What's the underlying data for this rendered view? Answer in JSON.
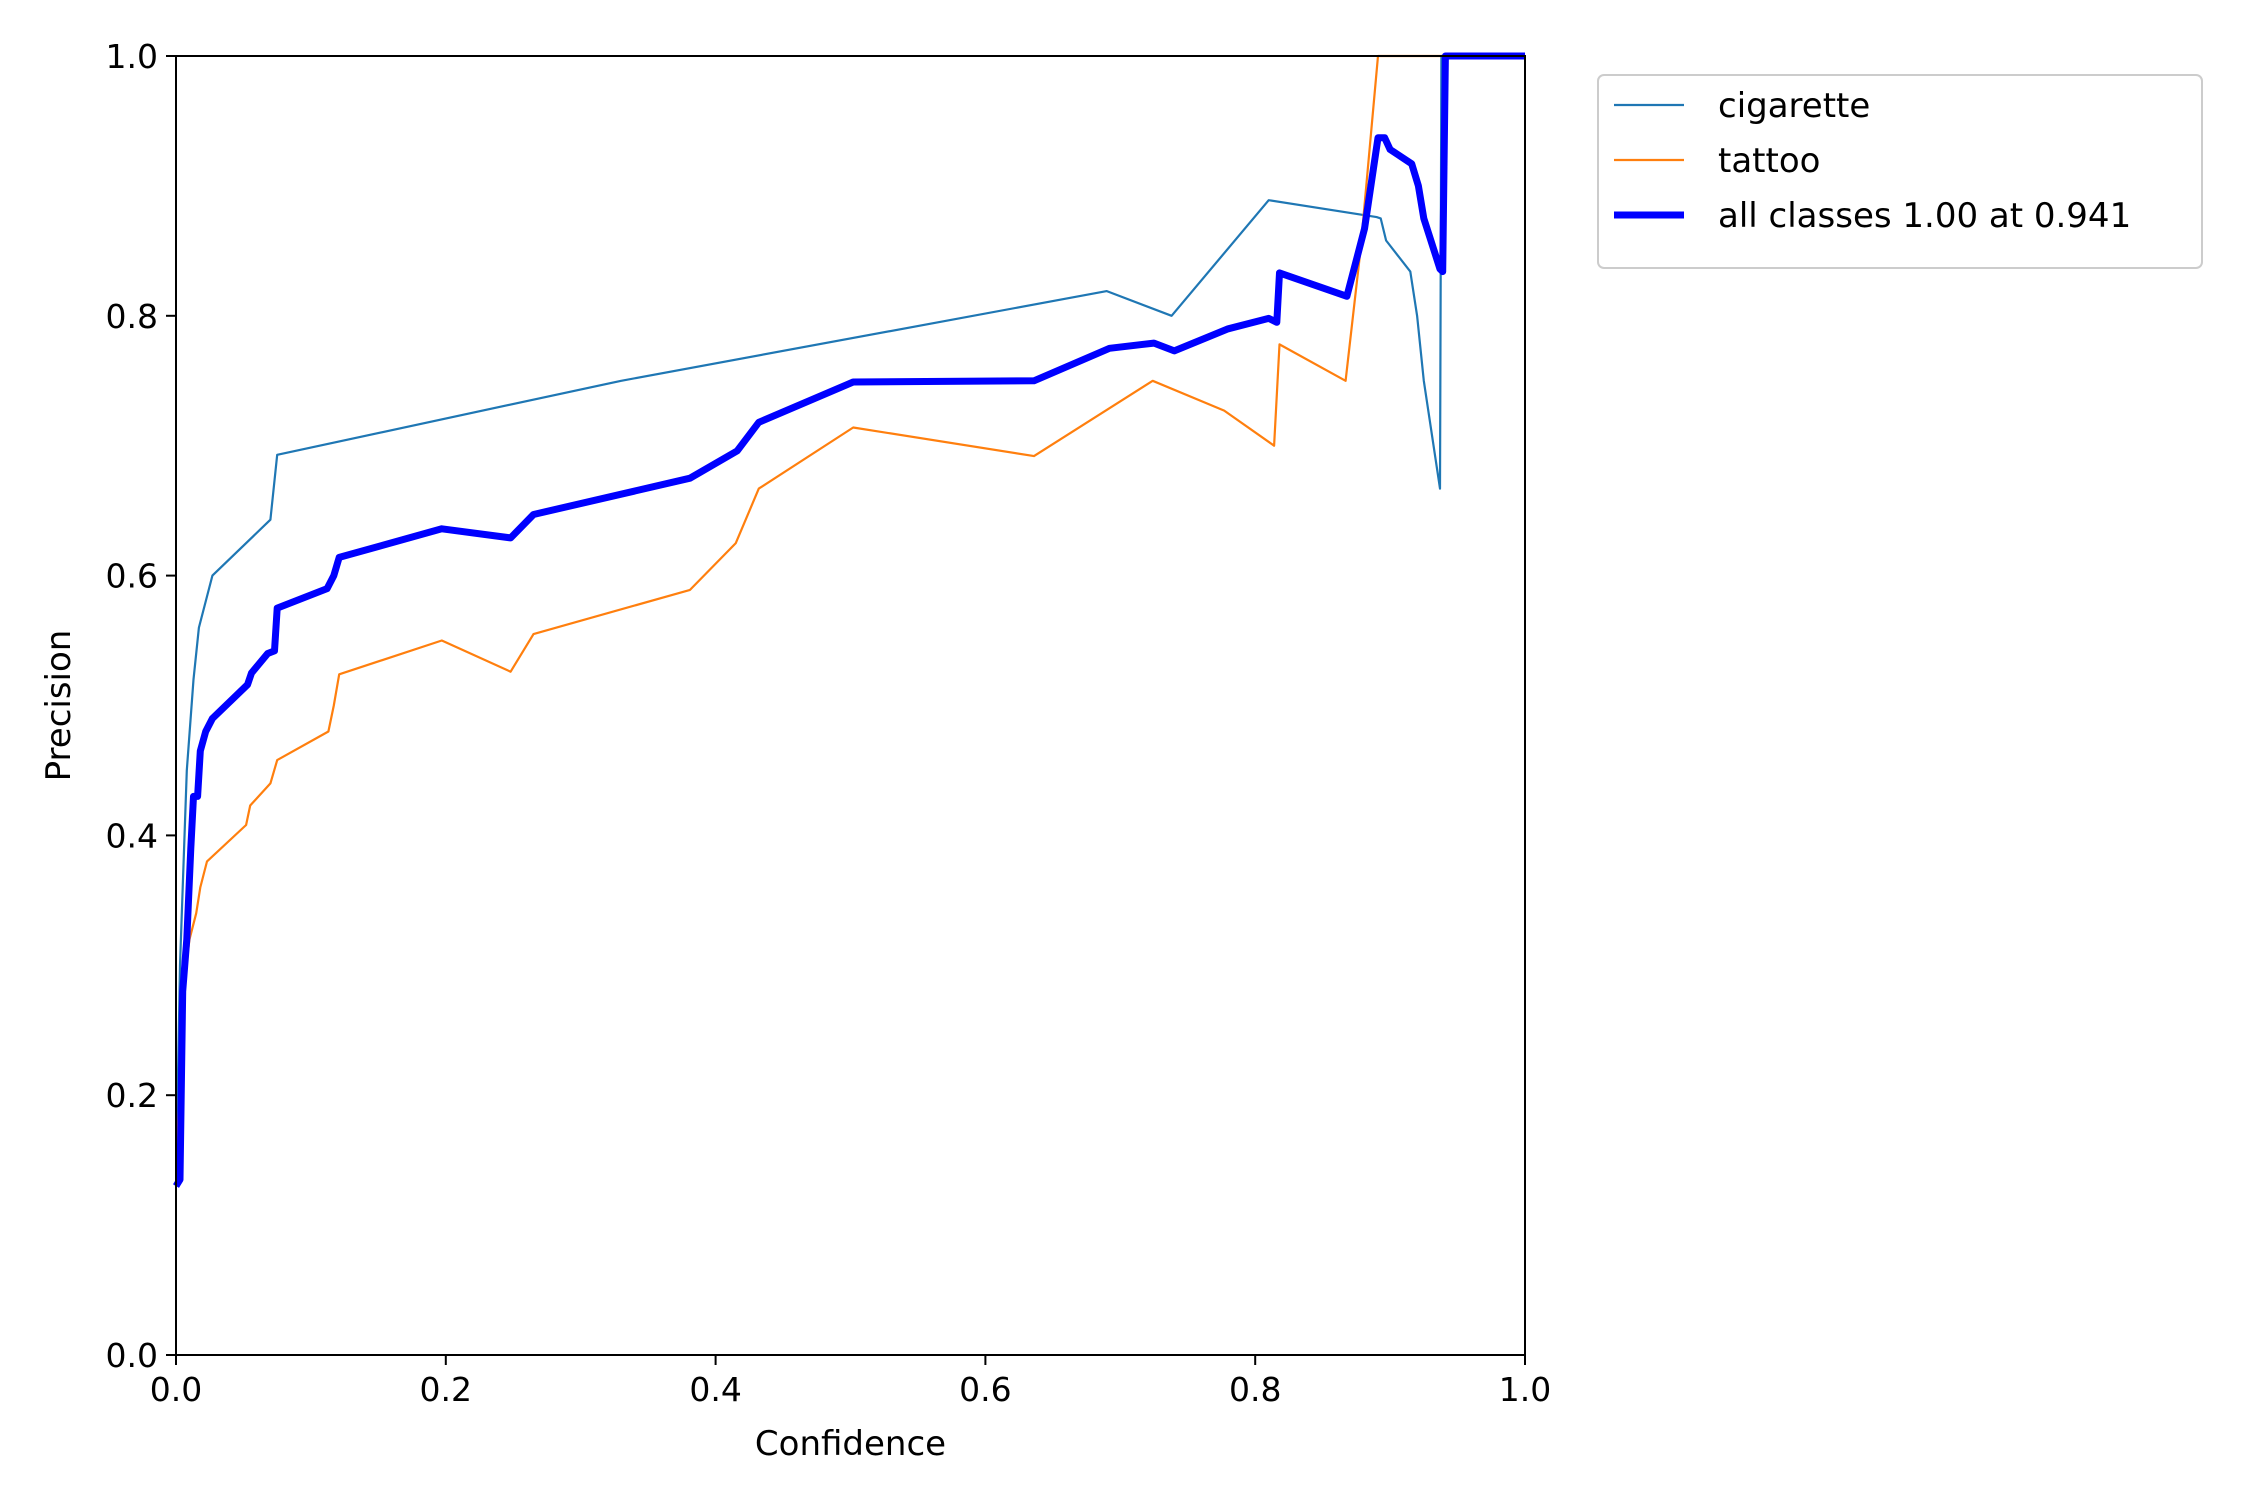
{
  "chart_data": {
    "type": "line",
    "xlabel": "Confidence",
    "ylabel": "Precision",
    "xlim": [
      0.0,
      1.0
    ],
    "ylim": [
      0.0,
      1.0
    ],
    "xticks": [
      "0.0",
      "0.2",
      "0.4",
      "0.6",
      "0.8",
      "1.0"
    ],
    "yticks": [
      "0.0",
      "0.2",
      "0.4",
      "0.6",
      "0.8",
      "1.0"
    ],
    "grid": false,
    "legend_position": "outside-top-right",
    "series": [
      {
        "name": "cigarette",
        "color": "#1f77b4",
        "width": "thin",
        "points": [
          [
            0.0,
            0.13
          ],
          [
            0.003,
            0.3
          ],
          [
            0.008,
            0.45
          ],
          [
            0.013,
            0.52
          ],
          [
            0.017,
            0.56
          ],
          [
            0.027,
            0.6
          ],
          [
            0.07,
            0.643
          ],
          [
            0.075,
            0.693
          ],
          [
            0.33,
            0.75
          ],
          [
            0.69,
            0.819
          ],
          [
            0.738,
            0.8
          ],
          [
            0.81,
            0.889
          ],
          [
            0.89,
            0.876
          ],
          [
            0.893,
            0.875
          ],
          [
            0.897,
            0.858
          ],
          [
            0.915,
            0.834
          ],
          [
            0.92,
            0.8
          ],
          [
            0.925,
            0.75
          ],
          [
            0.937,
            0.667
          ],
          [
            0.938,
            1.0
          ],
          [
            1.0,
            1.0
          ]
        ]
      },
      {
        "name": "tattoo",
        "color": "#ff7f0e",
        "width": "thin",
        "points": [
          [
            0.0,
            0.13
          ],
          [
            0.005,
            0.28
          ],
          [
            0.01,
            0.32
          ],
          [
            0.015,
            0.34
          ],
          [
            0.018,
            0.36
          ],
          [
            0.023,
            0.38
          ],
          [
            0.052,
            0.408
          ],
          [
            0.055,
            0.423
          ],
          [
            0.07,
            0.44
          ],
          [
            0.075,
            0.458
          ],
          [
            0.113,
            0.48
          ],
          [
            0.117,
            0.5
          ],
          [
            0.121,
            0.524
          ],
          [
            0.197,
            0.55
          ],
          [
            0.248,
            0.526
          ],
          [
            0.265,
            0.555
          ],
          [
            0.381,
            0.589
          ],
          [
            0.415,
            0.625
          ],
          [
            0.432,
            0.667
          ],
          [
            0.502,
            0.714
          ],
          [
            0.636,
            0.692
          ],
          [
            0.724,
            0.75
          ],
          [
            0.777,
            0.727
          ],
          [
            0.814,
            0.7
          ],
          [
            0.818,
            0.778
          ],
          [
            0.867,
            0.75
          ],
          [
            0.878,
            0.85
          ],
          [
            0.891,
            1.0
          ],
          [
            1.0,
            1.0
          ]
        ]
      },
      {
        "name": "all classes 1.00 at 0.941",
        "color": "#0000ff",
        "width": "thick",
        "points": [
          [
            0.0,
            0.13
          ],
          [
            0.003,
            0.135
          ],
          [
            0.005,
            0.28
          ],
          [
            0.008,
            0.32
          ],
          [
            0.011,
            0.39
          ],
          [
            0.013,
            0.43
          ],
          [
            0.016,
            0.43
          ],
          [
            0.018,
            0.465
          ],
          [
            0.022,
            0.48
          ],
          [
            0.027,
            0.49
          ],
          [
            0.053,
            0.516
          ],
          [
            0.056,
            0.525
          ],
          [
            0.068,
            0.54
          ],
          [
            0.073,
            0.542
          ],
          [
            0.075,
            0.575
          ],
          [
            0.112,
            0.59
          ],
          [
            0.117,
            0.6
          ],
          [
            0.121,
            0.614
          ],
          [
            0.197,
            0.636
          ],
          [
            0.248,
            0.629
          ],
          [
            0.265,
            0.647
          ],
          [
            0.381,
            0.675
          ],
          [
            0.416,
            0.696
          ],
          [
            0.432,
            0.718
          ],
          [
            0.502,
            0.749
          ],
          [
            0.636,
            0.75
          ],
          [
            0.692,
            0.775
          ],
          [
            0.725,
            0.779
          ],
          [
            0.74,
            0.773
          ],
          [
            0.78,
            0.79
          ],
          [
            0.81,
            0.798
          ],
          [
            0.816,
            0.795
          ],
          [
            0.818,
            0.833
          ],
          [
            0.868,
            0.815
          ],
          [
            0.881,
            0.867
          ],
          [
            0.891,
            0.937
          ],
          [
            0.896,
            0.937
          ],
          [
            0.9,
            0.928
          ],
          [
            0.916,
            0.917
          ],
          [
            0.921,
            0.9
          ],
          [
            0.925,
            0.875
          ],
          [
            0.937,
            0.836
          ],
          [
            0.939,
            0.834
          ],
          [
            0.941,
            1.0
          ],
          [
            1.0,
            1.0
          ]
        ]
      }
    ]
  }
}
